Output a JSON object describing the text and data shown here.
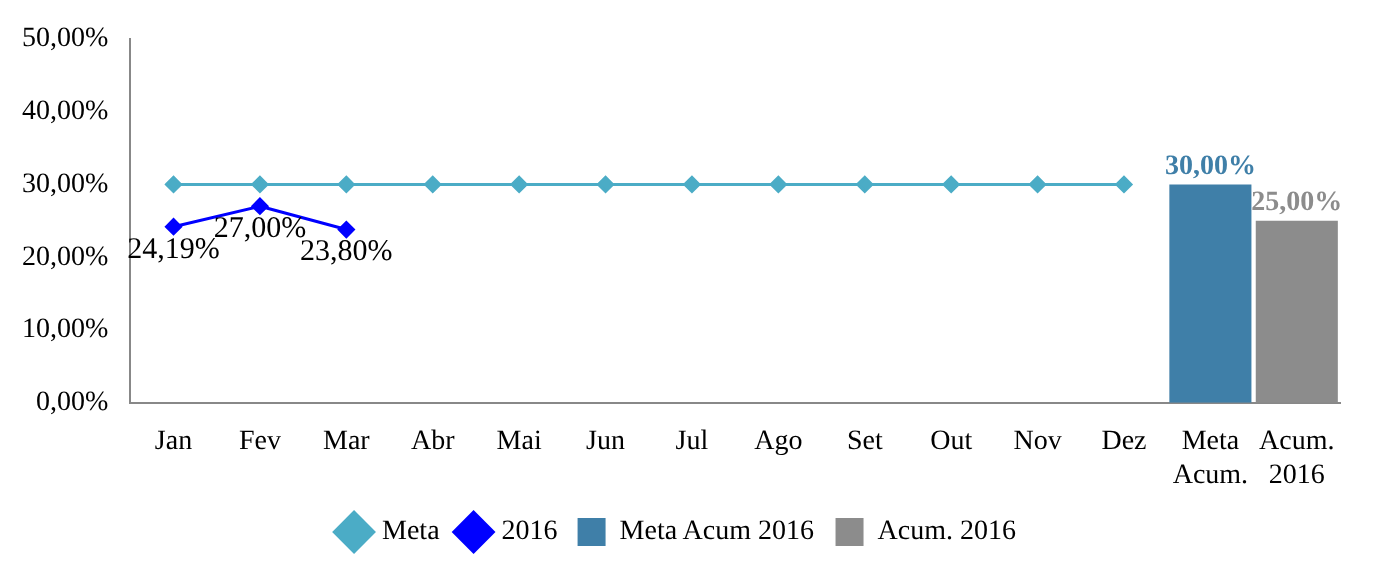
{
  "chart_data": {
    "type": "line",
    "categories": [
      "Jan",
      "Fev",
      "Mar",
      "Abr",
      "Mai",
      "Jun",
      "Jul",
      "Ago",
      "Set",
      "Out",
      "Nov",
      "Dez",
      "Meta Acum.",
      "Acum. 2016"
    ],
    "series": [
      {
        "name": "Meta Acum 2016",
        "type": "bar",
        "color": "#3f7fa8",
        "values": [
          null,
          null,
          null,
          null,
          null,
          null,
          null,
          null,
          null,
          null,
          null,
          null,
          30,
          null
        ],
        "value_labels": [
          null,
          null,
          null,
          null,
          null,
          null,
          null,
          null,
          null,
          null,
          null,
          null,
          "30,00%",
          null
        ]
      },
      {
        "name": "Acum. 2016",
        "type": "bar",
        "color": "#8c8c8c",
        "values": [
          null,
          null,
          null,
          null,
          null,
          null,
          null,
          null,
          null,
          null,
          null,
          null,
          null,
          25
        ],
        "value_labels": [
          null,
          null,
          null,
          null,
          null,
          null,
          null,
          null,
          null,
          null,
          null,
          null,
          null,
          "25,00%"
        ]
      },
      {
        "name": "Meta",
        "color": "#4bacc6",
        "values": [
          30,
          30,
          30,
          30,
          30,
          30,
          30,
          30,
          30,
          30,
          30,
          30,
          null,
          null
        ]
      },
      {
        "name": "2016",
        "color": "#0000ff",
        "values": [
          24.19,
          27,
          23.8,
          null,
          null,
          null,
          null,
          null,
          null,
          null,
          null,
          null,
          null,
          null
        ],
        "value_labels": [
          "24,19%",
          "27,00%",
          "23,80%",
          null,
          null,
          null,
          null,
          null,
          null,
          null,
          null,
          null,
          null,
          null
        ]
      }
    ],
    "ylim": [
      0,
      50
    ],
    "yticks": [
      {
        "value": 0,
        "label": "0,00%"
      },
      {
        "value": 10,
        "label": "10,00%"
      },
      {
        "value": 20,
        "label": "20,00%"
      },
      {
        "value": 30,
        "label": "30,00%"
      },
      {
        "value": 40,
        "label": "40,00%"
      },
      {
        "value": 50,
        "label": "50,00%"
      }
    ],
    "grid": false,
    "legend": "bottom",
    "marker": "diamond",
    "line_style": "solid"
  }
}
